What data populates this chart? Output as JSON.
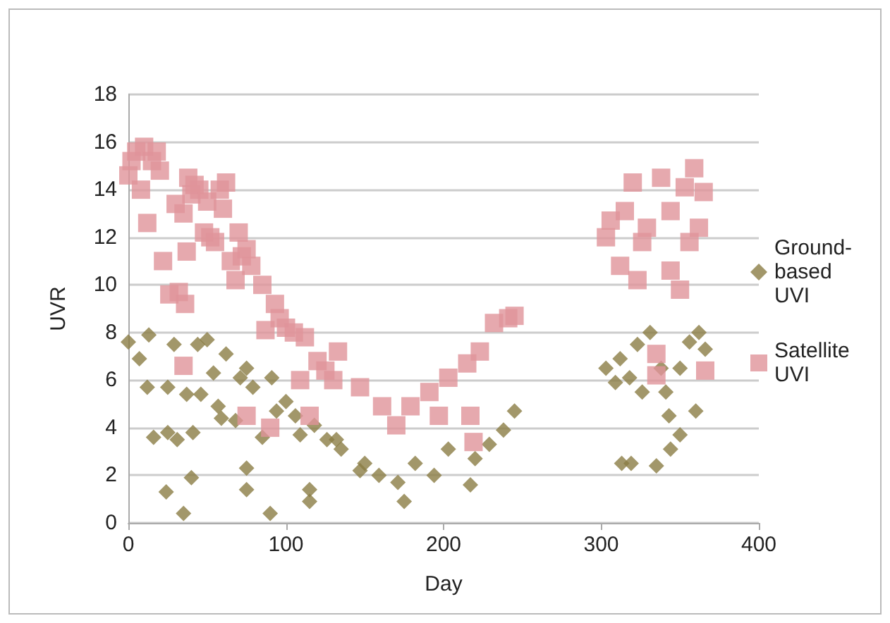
{
  "chart_data": {
    "type": "scatter",
    "xlabel": "Day",
    "ylabel": "UVR",
    "xlim": [
      0,
      400
    ],
    "xticks": [
      0,
      100,
      200,
      300,
      400
    ],
    "ylim": [
      0,
      18
    ],
    "yticks": [
      0,
      2,
      4,
      6,
      8,
      10,
      12,
      14,
      16,
      18
    ],
    "grid": "y",
    "legend": "right",
    "series": [
      {
        "name": "Ground-based UVI",
        "color": "#8b7d45",
        "marker": "diamond",
        "x": [
          0,
          7,
          13,
          12,
          16,
          24,
          25,
          25,
          31,
          29,
          35,
          37,
          40,
          41,
          44,
          46,
          50,
          54,
          57,
          59,
          62,
          68,
          71,
          75,
          75,
          75,
          79,
          85,
          90,
          91,
          94,
          100,
          106,
          109,
          115,
          115,
          118,
          126,
          132,
          135,
          147,
          150,
          159,
          171,
          175,
          182,
          194,
          203,
          217,
          220,
          229,
          238,
          245,
          303,
          312,
          309,
          323,
          331,
          326,
          313,
          319,
          335,
          344,
          350,
          343,
          360,
          356,
          362,
          366,
          350,
          341,
          318,
          338
        ],
        "values": [
          7.6,
          6.9,
          7.9,
          5.7,
          3.6,
          1.3,
          5.7,
          3.8,
          3.5,
          7.5,
          0.4,
          5.4,
          1.9,
          3.8,
          7.5,
          5.4,
          7.7,
          6.3,
          4.9,
          4.4,
          7.1,
          4.3,
          6.1,
          6.5,
          2.3,
          1.4,
          5.7,
          3.6,
          0.4,
          6.1,
          4.7,
          5.1,
          4.5,
          3.7,
          1.4,
          0.9,
          4.1,
          3.5,
          3.5,
          3.1,
          2.2,
          2.5,
          2.0,
          1.7,
          0.9,
          2.5,
          2.0,
          3.1,
          1.6,
          2.7,
          3.3,
          3.9,
          4.7,
          6.5,
          6.9,
          5.9,
          7.5,
          8.0,
          5.5,
          2.5,
          2.5,
          2.4,
          3.1,
          3.7,
          4.5,
          4.7,
          7.6,
          8.0,
          7.3,
          6.5,
          5.5,
          6.1,
          6.5
        ]
      },
      {
        "name": "Satellite UVI",
        "color": "#e0949a",
        "marker": "square",
        "x": [
          0,
          2,
          5,
          8,
          10,
          12,
          15,
          18,
          20,
          22,
          26,
          30,
          32,
          35,
          38,
          40,
          42,
          37,
          36,
          35,
          45,
          48,
          50,
          52,
          55,
          58,
          60,
          62,
          65,
          68,
          70,
          72,
          75,
          78,
          75,
          90,
          87,
          85,
          93,
          96,
          100,
          105,
          109,
          112,
          115,
          120,
          125,
          130,
          133,
          147,
          161,
          170,
          179,
          191,
          197,
          203,
          215,
          217,
          219,
          223,
          232,
          241,
          245,
          306,
          303,
          312,
          323,
          320,
          329,
          338,
          344,
          344,
          350,
          359,
          365,
          362,
          356,
          335,
          335,
          366,
          315,
          326,
          353
        ],
        "values": [
          14.6,
          15.2,
          15.6,
          14.0,
          15.8,
          12.6,
          15.2,
          15.6,
          14.8,
          11.0,
          9.6,
          13.4,
          9.7,
          13.0,
          14.5,
          13.8,
          14.2,
          11.4,
          9.2,
          6.6,
          14.0,
          12.2,
          13.5,
          12.0,
          11.8,
          14.0,
          13.2,
          14.3,
          11.0,
          10.2,
          12.2,
          11.2,
          11.5,
          10.8,
          4.5,
          4.0,
          8.1,
          10.0,
          9.2,
          8.6,
          8.2,
          8.0,
          6.0,
          7.8,
          4.5,
          6.8,
          6.4,
          6.0,
          7.2,
          5.7,
          4.9,
          4.1,
          4.9,
          5.5,
          4.5,
          6.1,
          6.7,
          4.5,
          3.4,
          7.2,
          8.4,
          8.6,
          8.7,
          12.7,
          12.0,
          10.8,
          10.2,
          14.3,
          12.4,
          14.5,
          13.1,
          10.6,
          9.8,
          14.9,
          13.9,
          12.4,
          11.8,
          7.1,
          6.2,
          6.4,
          13.1,
          11.8,
          14.1
        ]
      }
    ]
  }
}
